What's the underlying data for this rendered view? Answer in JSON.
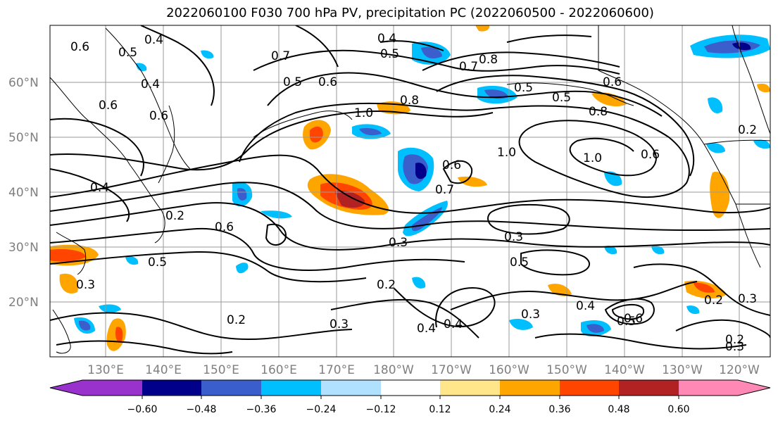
{
  "title": "2022060100 F030 700 hPa PV, precipitation PC (2022060500 - 2022060600)",
  "map": {
    "lat_labels": [
      "60°N",
      "50°N",
      "40°N",
      "30°N",
      "20°N"
    ],
    "lat_values": [
      60,
      50,
      40,
      30,
      20
    ],
    "lon_labels": [
      "130°E",
      "140°E",
      "150°E",
      "160°E",
      "170°E",
      "180°W",
      "170°W",
      "160°W",
      "150°W",
      "140°W",
      "130°W",
      "120°W"
    ],
    "lon_values": [
      130,
      140,
      150,
      160,
      170,
      180,
      190,
      200,
      210,
      220,
      230,
      240
    ],
    "lat_range": [
      10,
      70
    ],
    "lon_range": [
      120,
      245
    ],
    "grid": true
  },
  "contour_labels": [
    "0.4",
    "0.6",
    "0.5",
    "0.4",
    "0.6",
    "0.5",
    "0.6",
    "0.7",
    "0.4",
    "0.5",
    "0.5",
    "0.6",
    "0.8",
    "0.7",
    "0.8",
    "1.0",
    "0.5",
    "0.8",
    "0.6",
    "1.0",
    "0.6",
    "0.7",
    "1.0",
    "0.6",
    "0.3",
    "0.4",
    "0.2",
    "0.6",
    "0.5",
    "0.5",
    "0.3",
    "0.3",
    "0.5",
    "0.2",
    "0.2",
    "0.3",
    "0.4",
    "0.4",
    "0.3",
    "0.4",
    "0.6",
    "0.2",
    "0.3",
    "0.2",
    "0.3",
    "0.2"
  ],
  "colorbar": {
    "colors": [
      "#9932cc",
      "#00008b",
      "#3a5fcd",
      "#00bfff",
      "#b0e2ff",
      "#ffffff",
      "#ffe68a",
      "#ffa500",
      "#ff4500",
      "#b22222",
      "#ff89b4"
    ],
    "tick_labels": [
      "−0.60",
      "−0.48",
      "−0.36",
      "−0.24",
      "−0.12",
      "0.12",
      "0.24",
      "0.36",
      "0.48",
      "0.60"
    ]
  }
}
